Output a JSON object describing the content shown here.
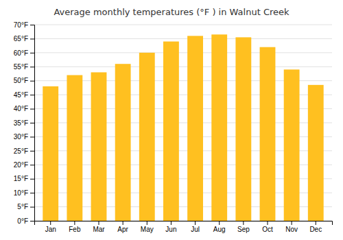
{
  "chart_data": {
    "type": "bar",
    "title": "Average monthly temperatures (°F ) in Walnut Creek",
    "categories": [
      "Jan",
      "Feb",
      "Mar",
      "Apr",
      "May",
      "Jun",
      "Jul",
      "Aug",
      "Sep",
      "Oct",
      "Nov",
      "Dec"
    ],
    "values": [
      48,
      52,
      53,
      56,
      60,
      64,
      66,
      66.5,
      65.5,
      62,
      54,
      48.5
    ],
    "color": "#FFC020",
    "ylim": [
      0,
      70
    ],
    "yticks": [
      {
        "value": 0,
        "label": "0°F"
      },
      {
        "value": 5,
        "label": "5°F"
      },
      {
        "value": 10,
        "label": "10°F"
      },
      {
        "value": 15,
        "label": "15°F"
      },
      {
        "value": 20,
        "label": "20°F"
      },
      {
        "value": 25,
        "label": "25°F"
      },
      {
        "value": 30,
        "label": "30°F"
      },
      {
        "value": 35,
        "label": "35°F"
      },
      {
        "value": 40,
        "label": "40°F"
      },
      {
        "value": 45,
        "label": "45°F"
      },
      {
        "value": 50,
        "label": "50°F"
      },
      {
        "value": 55,
        "label": "55°F"
      },
      {
        "value": 60,
        "label": "60°F"
      },
      {
        "value": 65,
        "label": "65°F"
      },
      {
        "value": 70,
        "label": "70°F"
      }
    ],
    "grid": true
  }
}
